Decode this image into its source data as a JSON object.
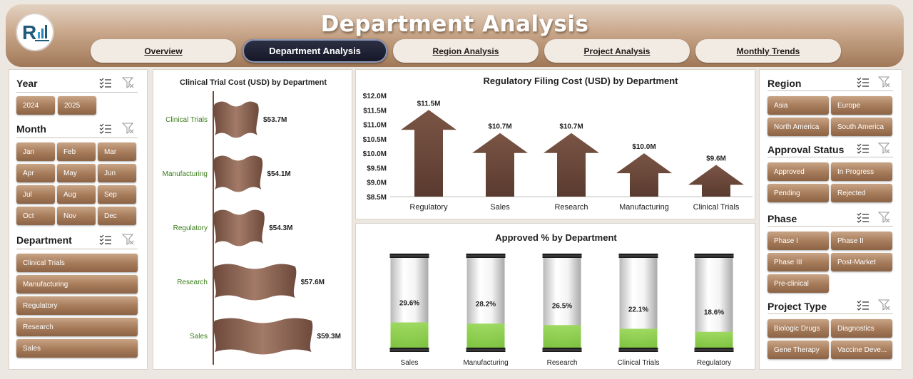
{
  "header": {
    "title": "Department Analysis",
    "tabs": [
      {
        "label": "Overview",
        "active": false
      },
      {
        "label": "Department Analysis",
        "active": true
      },
      {
        "label": "Region Analysis",
        "active": false
      },
      {
        "label": "Project Analysis",
        "active": false
      },
      {
        "label": "Monthly Trends",
        "active": false
      }
    ]
  },
  "left_slicers": {
    "year": {
      "title": "Year",
      "items": [
        "2024",
        "2025"
      ]
    },
    "month": {
      "title": "Month",
      "items": [
        "Jan",
        "Feb",
        "Mar",
        "Apr",
        "May",
        "Jun",
        "Jul",
        "Aug",
        "Sep",
        "Oct",
        "Nov",
        "Dec"
      ]
    },
    "department": {
      "title": "Department",
      "items": [
        "Clinical Trials",
        "Manufacturing",
        "Regulatory",
        "Research",
        "Sales"
      ]
    }
  },
  "right_slicers": {
    "region": {
      "title": "Region",
      "items": [
        "Asia",
        "Europe",
        "North America",
        "South America"
      ]
    },
    "approval": {
      "title": "Approval Status",
      "items": [
        "Approved",
        "In Progress",
        "Pending",
        "Rejected"
      ]
    },
    "phase": {
      "title": "Phase",
      "items": [
        "Phase I",
        "Phase II",
        "Phase III",
        "Post-Market",
        "Pre-clinical"
      ]
    },
    "project_type": {
      "title": "Project Type",
      "items": [
        "Biologic Drugs",
        "Diagnostics",
        "Gene Therapy",
        "Vaccine Deve..."
      ]
    }
  },
  "colors": {
    "brown_dark": "#6e4a3c",
    "brown_light": "#a27a67",
    "green_fill": "#8ccf4a",
    "label_green": "#3a7d1a"
  },
  "chart_data": [
    {
      "type": "bar",
      "orientation": "horizontal",
      "title": "Clinical Trial Cost (USD) by Department",
      "categories": [
        "Clinical Trials",
        "Manufacturing",
        "Regulatory",
        "Research",
        "Sales"
      ],
      "values": [
        53.7,
        54.1,
        54.3,
        57.6,
        59.3
      ],
      "labels": [
        "$53.7M",
        "$54.1M",
        "$54.3M",
        "$57.6M",
        "$59.3M"
      ],
      "unit": "USD millions"
    },
    {
      "type": "bar",
      "title": "Regulatory Filing Cost (USD) by Department",
      "categories": [
        "Regulatory",
        "Sales",
        "Research",
        "Manufacturing",
        "Clinical Trials"
      ],
      "values": [
        11.5,
        10.7,
        10.7,
        10.0,
        9.6
      ],
      "labels": [
        "$11.5M",
        "$10.7M",
        "$10.7M",
        "$10.0M",
        "$9.6M"
      ],
      "ylim": [
        8.5,
        12.0
      ],
      "yticks": [
        "$12.0M",
        "$11.5M",
        "$11.0M",
        "$10.5M",
        "$10.0M",
        "$9.5M",
        "$9.0M",
        "$8.5M"
      ],
      "ytick_values": [
        12.0,
        11.5,
        11.0,
        10.5,
        10.0,
        9.5,
        9.0,
        8.5
      ]
    },
    {
      "type": "bar",
      "title": "Approved % by Department",
      "categories": [
        "Sales",
        "Manufacturing",
        "Research",
        "Clinical Trials",
        "Regulatory"
      ],
      "values": [
        29.6,
        28.2,
        26.5,
        22.1,
        18.6
      ],
      "labels": [
        "29.6%",
        "28.2%",
        "26.5%",
        "22.1%",
        "18.6%"
      ],
      "ylim": [
        0,
        100
      ]
    }
  ]
}
